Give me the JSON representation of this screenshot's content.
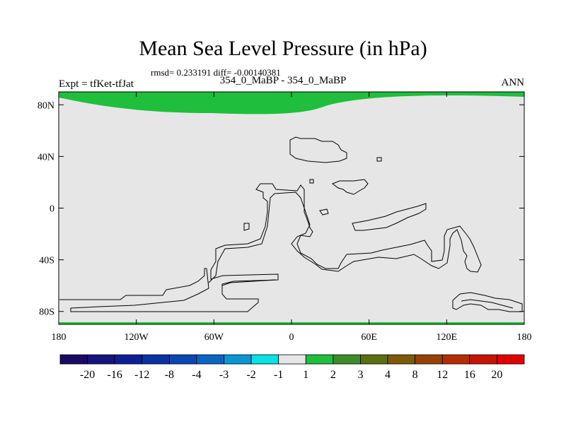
{
  "title": "Mean Sea Level Pressure (in hPa)",
  "stats": "rmsd= 0.233191 diff= -0.00140381",
  "left_label": "Expt = tfKet-tfJat",
  "center_label": "354_0_MaBP - 354_0_MaBP",
  "right_label": "ANN",
  "chart_data": {
    "type": "heatmap",
    "x_ticks": [
      {
        "value": -180,
        "label": "180"
      },
      {
        "value": -120,
        "label": "120W"
      },
      {
        "value": -60,
        "label": "60W"
      },
      {
        "value": 0,
        "label": "0"
      },
      {
        "value": 60,
        "label": "60E"
      },
      {
        "value": 120,
        "label": "120E"
      },
      {
        "value": 180,
        "label": "180"
      }
    ],
    "y_ticks": [
      {
        "value": 80,
        "label": "80N"
      },
      {
        "value": 40,
        "label": "40N"
      },
      {
        "value": 0,
        "label": "0"
      },
      {
        "value": -40,
        "label": "40S"
      },
      {
        "value": -80,
        "label": "80S"
      }
    ],
    "xlim": [
      -180,
      180
    ],
    "ylim": [
      -90,
      90
    ],
    "background_range": "-1 to 1",
    "background_color": "#e6e6e6",
    "regions": [
      {
        "range": "1 to 2",
        "color": "#1fbe3c",
        "area": "north polar band above ~70N"
      },
      {
        "range": "1 to 2",
        "color": "#1fbe3c",
        "area": "thin band at 90S"
      }
    ],
    "colorbar": {
      "colors": [
        "#1a0a64",
        "#14147f",
        "#0f1e96",
        "#0a32a5",
        "#0a46b4",
        "#0a64c3",
        "#0a96d2",
        "#0ae1e6",
        "#e6e6e6",
        "#1fbe3c",
        "#3c8c28",
        "#5a6e14",
        "#7d5a0a",
        "#964105",
        "#b42d05",
        "#c81405",
        "#e10000"
      ],
      "labels": [
        "-20",
        "-16",
        "-12",
        "-8",
        "-4",
        "-3",
        "-2",
        "-1",
        "1",
        "2",
        "3",
        "4",
        "8",
        "12",
        "16",
        "20"
      ]
    }
  }
}
